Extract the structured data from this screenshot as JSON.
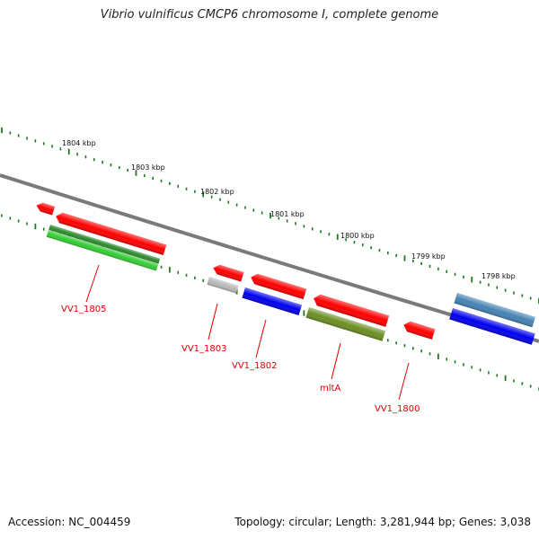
{
  "title": "Vibrio vulnificus CMCP6 chromosome I, complete genome",
  "footer": {
    "accession": "Accession: NC_004459",
    "topology": "Topology: circular; Length: 3,281,944 bp; Genes: 3,038"
  },
  "scale_labels": [
    "1804 kbp",
    "1803 kbp",
    "1802 kbp",
    "1801 kbp",
    "1800 kbp",
    "1799 kbp",
    "1798 kbp"
  ],
  "features": [
    {
      "name": "feat-red-1",
      "color": "#ff0000"
    },
    {
      "name": "feat-red-2",
      "color": "#ff0000"
    },
    {
      "name": "feat-green-1",
      "color": "#2e8b2e"
    },
    {
      "name": "feat-green-2",
      "color": "#33cc33"
    },
    {
      "name": "feat-red-3",
      "color": "#ff0000"
    },
    {
      "name": "feat-gray-1",
      "color": "#b8b8b8"
    },
    {
      "name": "feat-red-4",
      "color": "#ff0000"
    },
    {
      "name": "feat-blue-1",
      "color": "#0000ee"
    },
    {
      "name": "feat-red-5",
      "color": "#ff0000"
    },
    {
      "name": "feat-olive-1",
      "color": "#6b8e23"
    },
    {
      "name": "feat-red-6",
      "color": "#ff0000"
    },
    {
      "name": "feat-steelblue-1",
      "color": "#4682b4"
    },
    {
      "name": "feat-blue-2",
      "color": "#0000ee"
    }
  ],
  "gene_labels": [
    "VV1_1805",
    "VV1_1803",
    "VV1_1802",
    "mltA",
    "VV1_1800"
  ]
}
